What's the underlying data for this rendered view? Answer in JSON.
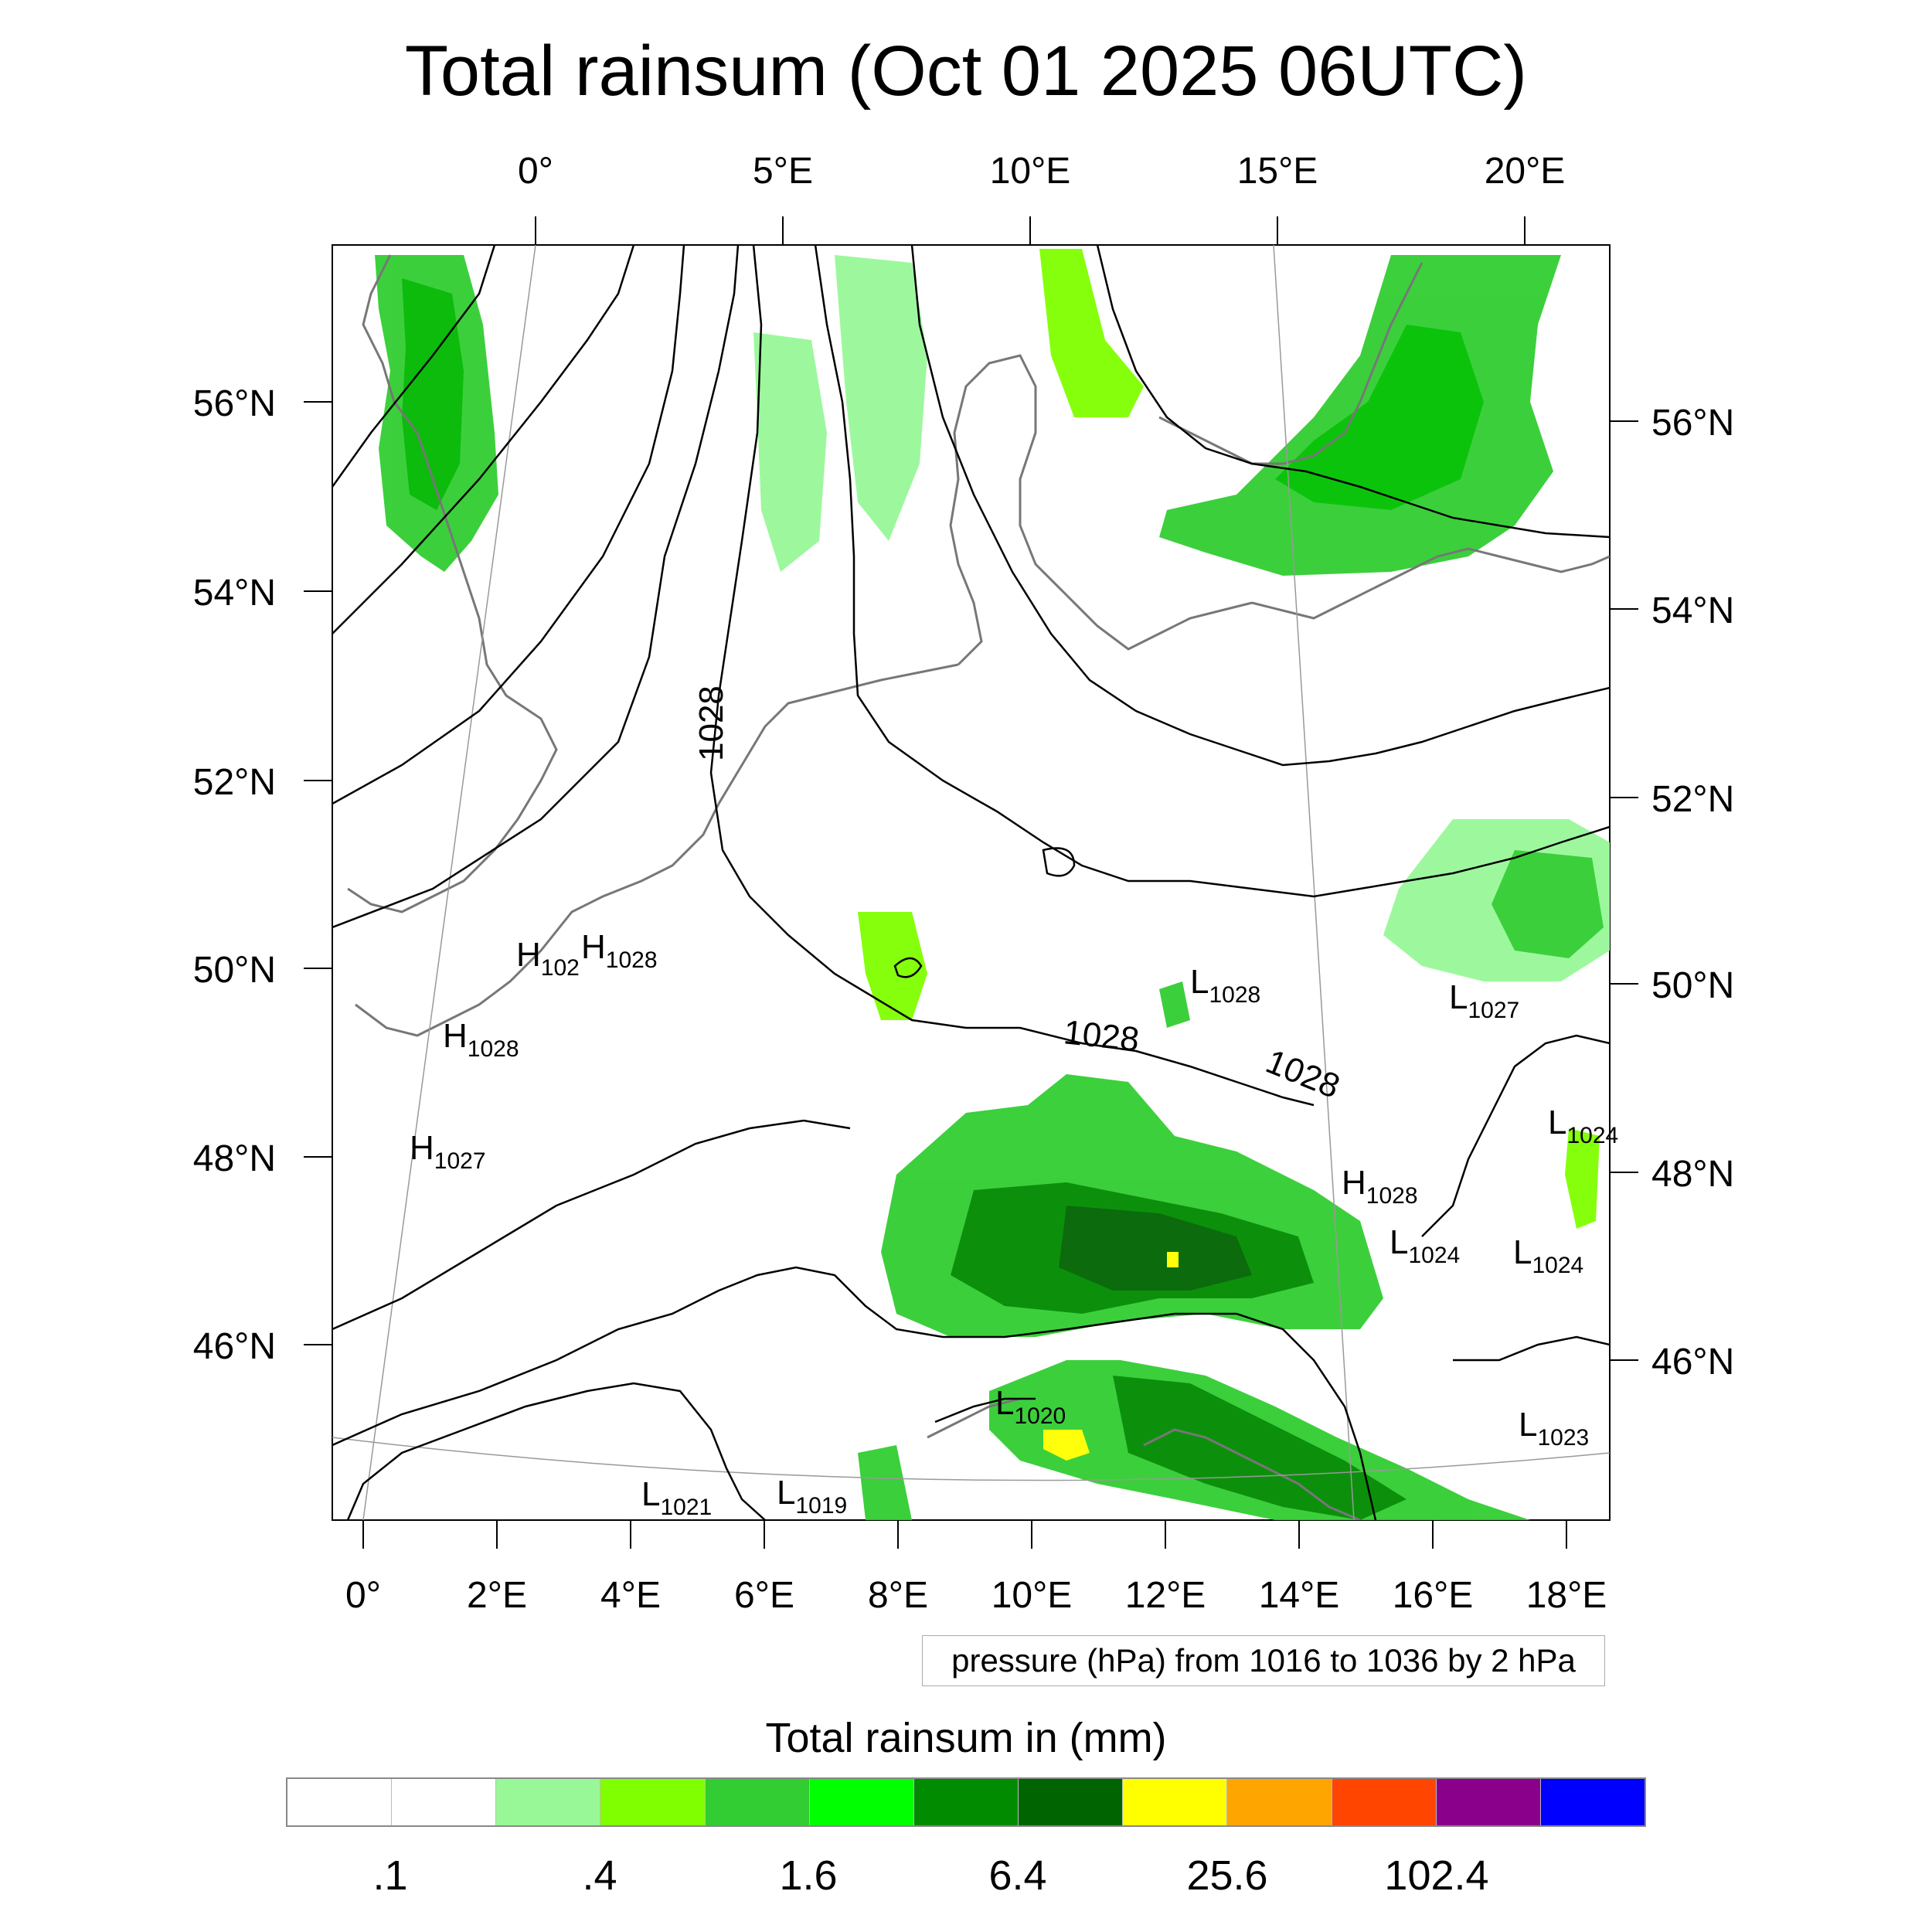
{
  "title": "Total rainsum (Oct 01 2025 06UTC)",
  "top_lon_labels": [
    "0°",
    "5°E",
    "10°E",
    "15°E",
    "20°E"
  ],
  "bottom_lon_labels": [
    "0°",
    "2°E",
    "4°E",
    "6°E",
    "8°E",
    "10°E",
    "12°E",
    "14°E",
    "16°E",
    "18°E"
  ],
  "left_lat_labels": [
    "56°N",
    "54°N",
    "52°N",
    "50°N",
    "48°N",
    "46°N"
  ],
  "right_lat_labels": [
    "56°N",
    "54°N",
    "52°N",
    "50°N",
    "48°N",
    "46°N"
  ],
  "pressure_centers": [
    {
      "type": "H",
      "value": "102"
    },
    {
      "type": "H",
      "value": "1028"
    },
    {
      "type": "H",
      "value": "1028"
    },
    {
      "type": "H",
      "value": "1027"
    },
    {
      "type": "L",
      "value": "1028"
    },
    {
      "type": "L",
      "value": "1027"
    },
    {
      "type": "L",
      "value": "1024"
    },
    {
      "type": "H",
      "value": "1028"
    },
    {
      "type": "L",
      "value": "1024"
    },
    {
      "type": "L",
      "value": "1024"
    },
    {
      "type": "L",
      "value": "1020"
    },
    {
      "type": "L",
      "value": "1023"
    },
    {
      "type": "L",
      "value": "1021"
    },
    {
      "type": "L",
      "value": "1019"
    }
  ],
  "contour_labels": [
    "1028",
    "1028",
    "1028"
  ],
  "info_text": "pressure (hPa) from 1016 to 1036 by 2 hPa",
  "colorbar": {
    "title": "Total rainsum in (mm)",
    "colors": [
      "#ffffff",
      "#ffffff",
      "#98f898",
      "#80ff00",
      "#32cd32",
      "#00ff00",
      "#008b00",
      "#006400",
      "#ffff00",
      "#ffa500",
      "#ff4500",
      "#8b008b",
      "#0000ff"
    ],
    "labels": [
      ".1",
      ".4",
      "1.6",
      "6.4",
      "25.6",
      "102.4"
    ]
  }
}
